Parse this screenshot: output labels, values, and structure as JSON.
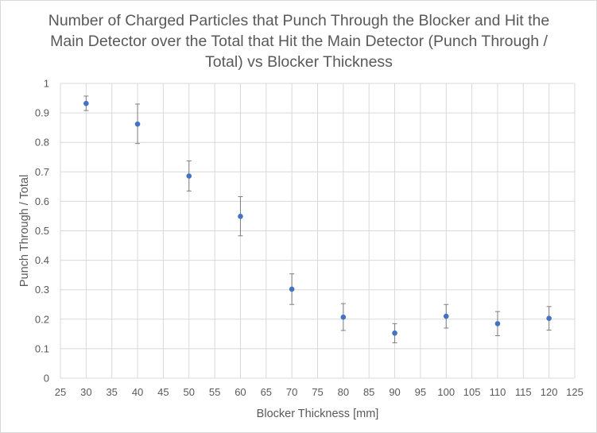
{
  "chart_data": {
    "type": "scatter",
    "title": "Number of Charged Particles that Punch Through the Blocker and Hit the Main Detector over the Total that Hit the Main Detector (Punch Through / Total) vs Blocker Thickness",
    "xlabel": "Blocker Thickness [mm]",
    "ylabel": "Punch Through / Total",
    "xlim": [
      25,
      125
    ],
    "ylim": [
      0,
      1
    ],
    "x_ticks": [
      "25",
      "30",
      "35",
      "40",
      "45",
      "50",
      "55",
      "60",
      "65",
      "70",
      "75",
      "80",
      "85",
      "90",
      "95",
      "100",
      "105",
      "110",
      "115",
      "120",
      "125"
    ],
    "y_ticks": [
      "0",
      "0.1",
      "0.2",
      "0.3",
      "0.4",
      "0.5",
      "0.6",
      "0.7",
      "0.8",
      "0.9",
      "1"
    ],
    "grid": true,
    "legend": "none",
    "marker_color": "#4472c4",
    "errorbar_color": "#7f7f7f",
    "grid_color": "#d9d9d9",
    "points": [
      {
        "x": 30,
        "y": 0.932,
        "y_low": 0.908,
        "y_high": 0.957
      },
      {
        "x": 40,
        "y": 0.862,
        "y_low": 0.796,
        "y_high": 0.93
      },
      {
        "x": 50,
        "y": 0.686,
        "y_low": 0.635,
        "y_high": 0.737
      },
      {
        "x": 60,
        "y": 0.549,
        "y_low": 0.483,
        "y_high": 0.616
      },
      {
        "x": 70,
        "y": 0.302,
        "y_low": 0.25,
        "y_high": 0.354
      },
      {
        "x": 80,
        "y": 0.207,
        "y_low": 0.162,
        "y_high": 0.253
      },
      {
        "x": 90,
        "y": 0.153,
        "y_low": 0.12,
        "y_high": 0.185
      },
      {
        "x": 100,
        "y": 0.21,
        "y_low": 0.17,
        "y_high": 0.25
      },
      {
        "x": 110,
        "y": 0.185,
        "y_low": 0.144,
        "y_high": 0.226
      },
      {
        "x": 120,
        "y": 0.203,
        "y_low": 0.163,
        "y_high": 0.243
      }
    ]
  }
}
